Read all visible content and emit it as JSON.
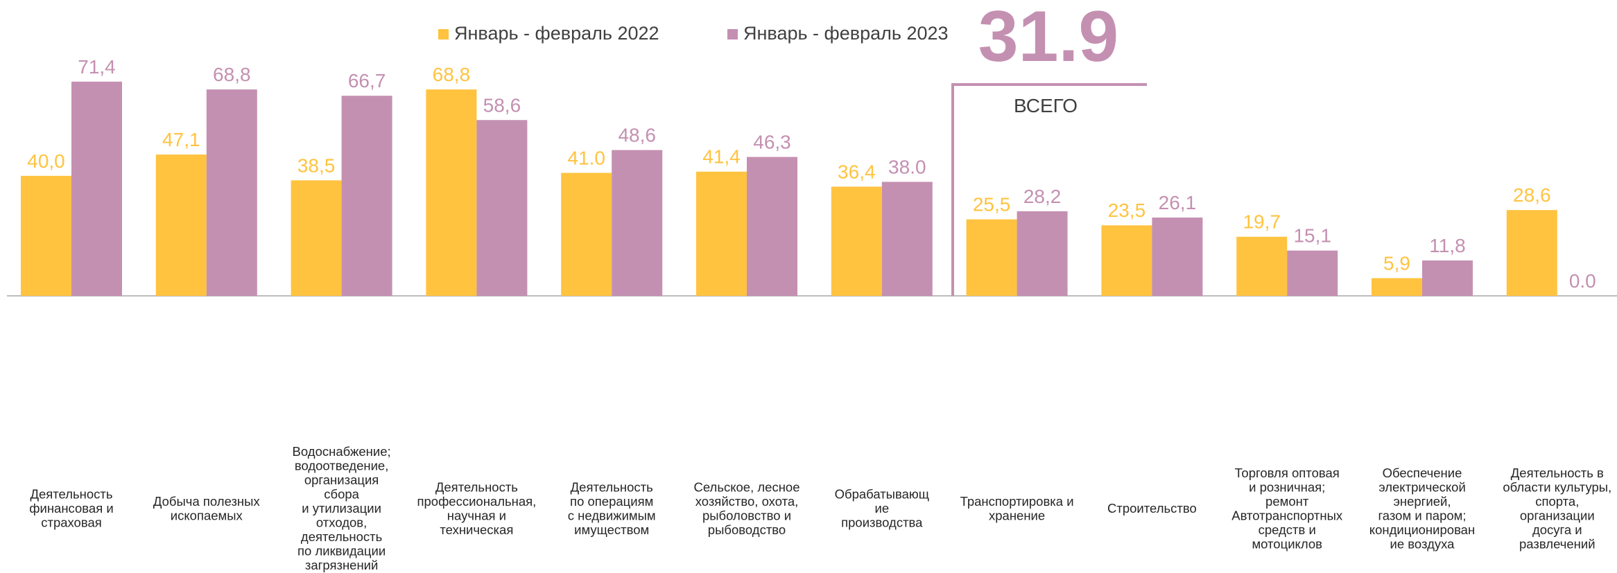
{
  "chart_data": {
    "type": "bar",
    "categories": [
      "Деятельность\nфинансовая и\nстраховая",
      "Добыча полезных\nископаемых",
      "Водоснабжение;\nводоотведение,\nорганизация\nсбора\nи утилизации\nотходов,\nдеятельность\nпо ликвидации\nзагрязнений",
      "Деятельность\nпрофессиональная,\nнаучная  и\nтехническая",
      "Деятельность\nпо операциям\nс недвижимым\nимуществом",
      "Сельское, лесное\nхозяйство, охота,\nрыболовство и\nрыбоводство",
      "Обрабатывающ\nие\nпроизводства",
      "Транспортировка и\nхранение",
      "Строительство",
      "Торговля оптовая\nи розничная;\nремонт\nАвтотранспортных\nсредств и\nмотоциклов",
      "Обеспечение\nэлектрической\nэнергией,\nгазом и паром;\nкондиционирован\nие воздуха",
      "Деятельность в\nобласти культуры,\nспорта,\nорганизации\nдосуга и\nразвлечений"
    ],
    "series": [
      {
        "name": "Январь - февраль 2022",
        "color": "#FFC340",
        "values": [
          40.0,
          47.1,
          38.5,
          68.8,
          41.0,
          41.4,
          36.4,
          25.5,
          23.5,
          19.7,
          5.9,
          28.6
        ],
        "value_labels": [
          "40,0",
          "47,1",
          "38,5",
          "68,8",
          "41.0",
          "41,4",
          "36,4",
          "25,5",
          "23,5",
          "19,7",
          "5,9",
          "28,6"
        ]
      },
      {
        "name": "Январь - февраль 2023",
        "color": "#C490B1",
        "values": [
          71.4,
          68.8,
          66.7,
          58.6,
          48.6,
          46.3,
          38.0,
          28.2,
          26.1,
          15.1,
          11.8,
          0.0
        ],
        "value_labels": [
          "71,4",
          "68,8",
          "66,7",
          "58,6",
          "48,6",
          "46,3",
          "38.0",
          "28,2",
          "26,1",
          "15,1",
          "11,8",
          "0.0"
        ]
      }
    ],
    "annotations": {
      "total": "31.9",
      "total_label": "ВСЕГО"
    }
  }
}
